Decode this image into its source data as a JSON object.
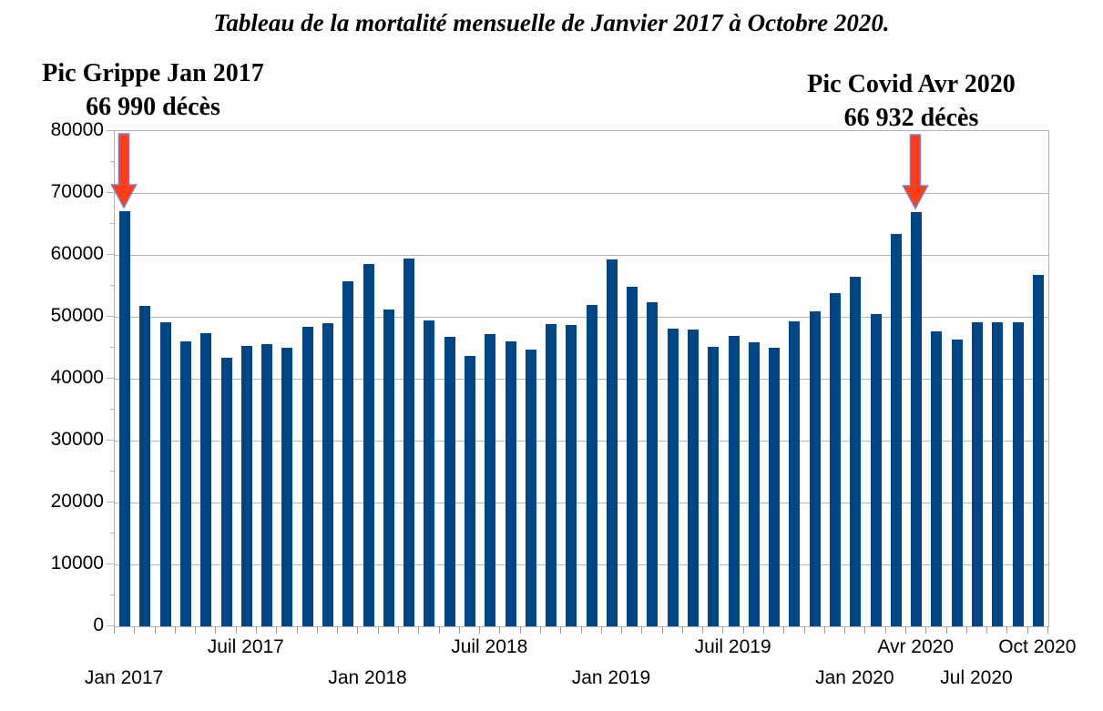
{
  "title": "Tableau de la mortalité mensuelle de Janvier 2017 à Octobre 2020.",
  "annotations": [
    {
      "id": "grippe",
      "line1": "Pic Grippe Jan 2017",
      "line2": "66 990 décès",
      "month_index": 0
    },
    {
      "id": "covid",
      "line1": "Pic Covid Avr 2020",
      "line2": "66 932 décès",
      "month_index": 39
    }
  ],
  "colors": {
    "bar": "#004586",
    "grid": "#b3b3b3",
    "arrow_fill": "#ff3d17",
    "arrow_stroke": "#7e7ec8",
    "text": "#000000",
    "background": "#ffffff"
  },
  "chart_data": {
    "type": "bar",
    "title": "Tableau de la mortalité mensuelle de Janvier 2017 à Octobre 2020.",
    "ylabel": "",
    "xlabel": "",
    "ylim": [
      0,
      80000
    ],
    "y_tick_interval": 10000,
    "y_minor_tick_interval": 5000,
    "y_tick_labels": [
      "0",
      "10000",
      "20000",
      "30000",
      "40000",
      "50000",
      "60000",
      "70000",
      "80000"
    ],
    "grid": "horizontal",
    "legend": "none",
    "categories": [
      "Jan 2017",
      "Fév 2017",
      "Mar 2017",
      "Avr 2017",
      "Mai 2017",
      "Juin 2017",
      "Juil 2017",
      "Aoû 2017",
      "Sep 2017",
      "Oct 2017",
      "Nov 2017",
      "Déc 2017",
      "Jan 2018",
      "Fév 2018",
      "Mar 2018",
      "Avr 2018",
      "Mai 2018",
      "Juin 2018",
      "Juil 2018",
      "Aoû 2018",
      "Sep 2018",
      "Oct 2018",
      "Nov 2018",
      "Déc 2018",
      "Jan 2019",
      "Fév 2019",
      "Mar 2019",
      "Avr 2019",
      "Mai 2019",
      "Juin 2019",
      "Juil 2019",
      "Aoû 2019",
      "Sep 2019",
      "Oct 2019",
      "Nov 2019",
      "Déc 2019",
      "Jan 2020",
      "Fév 2020",
      "Mar 2020",
      "Avr 2020",
      "Mai 2020",
      "Juin 2020",
      "Jul 2020",
      "Aoû 2020",
      "Sep 2020",
      "Oct 2020"
    ],
    "values": [
      66990,
      51700,
      49150,
      46050,
      47400,
      43400,
      45250,
      45600,
      45000,
      48350,
      49000,
      55800,
      58600,
      51200,
      59400,
      49400,
      46700,
      43700,
      47200,
      46000,
      44700,
      48800,
      48700,
      51900,
      59300,
      54900,
      52400,
      48100,
      48000,
      45200,
      46900,
      45900,
      45000,
      49300,
      50900,
      53800,
      56400,
      50500,
      63400,
      66932,
      47600,
      46300,
      49100,
      49100,
      49100,
      56800
    ],
    "x_axis_labels": [
      {
        "text": "Jan 2017",
        "month_index": 0,
        "row": "lower"
      },
      {
        "text": "Juil 2017",
        "month_index": 6,
        "row": "upper"
      },
      {
        "text": "Jan 2018",
        "month_index": 12,
        "row": "lower"
      },
      {
        "text": "Juil 2018",
        "month_index": 18,
        "row": "upper"
      },
      {
        "text": "Jan 2019",
        "month_index": 24,
        "row": "lower"
      },
      {
        "text": "Juil 2019",
        "month_index": 30,
        "row": "upper"
      },
      {
        "text": "Jan 2020",
        "month_index": 36,
        "row": "lower"
      },
      {
        "text": "Avr 2020",
        "month_index": 39,
        "row": "upper"
      },
      {
        "text": "Jul 2020",
        "month_index": 42,
        "row": "lower"
      },
      {
        "text": "Oct 2020",
        "month_index": 45,
        "row": "upper"
      }
    ]
  }
}
